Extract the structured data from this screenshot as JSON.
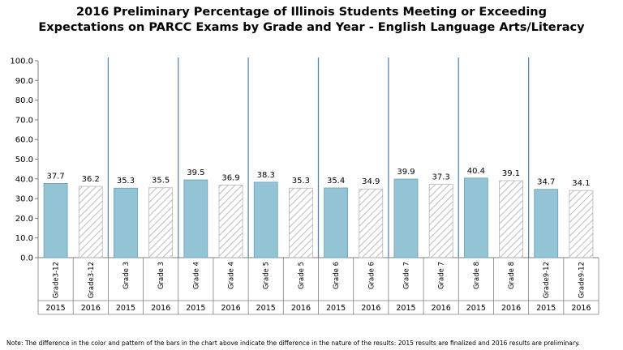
{
  "title": {
    "line1": "2016 Preliminary Percentage of Illinois Students Meeting or Exceeding",
    "line2": "Expectations on PARCC Exams by Grade and Year - English Language Arts/Literacy"
  },
  "note": "Note: The difference in the color and pattern of the bars in the chart above indicate the difference in the nature of the results: 2015 results are finalized and 2016 results are preliminary.",
  "colors": {
    "finalized_fill": "#92c4d5",
    "finalized_stroke": "#6a9fb3",
    "preliminary_hatch": "#c0c0c0",
    "preliminary_stroke": "#b4b4b4",
    "separator": "#5b87b5",
    "axis": "#7f7f7f"
  },
  "chart_data": {
    "type": "bar",
    "categories": [
      {
        "grade": "Grade3-12",
        "year": "2015"
      },
      {
        "grade": "Grade3-12",
        "year": "2016"
      },
      {
        "grade": "Grade 3",
        "year": "2015"
      },
      {
        "grade": "Grade 3",
        "year": "2016"
      },
      {
        "grade": "Grade 4",
        "year": "2015"
      },
      {
        "grade": "Grade 4",
        "year": "2016"
      },
      {
        "grade": "Grade 5",
        "year": "2015"
      },
      {
        "grade": "Grade 5",
        "year": "2016"
      },
      {
        "grade": "Grade 6",
        "year": "2015"
      },
      {
        "grade": "Grade 6",
        "year": "2016"
      },
      {
        "grade": "Grade 7",
        "year": "2015"
      },
      {
        "grade": "Grade 7",
        "year": "2016"
      },
      {
        "grade": "Grade 8",
        "year": "2015"
      },
      {
        "grade": "Grade 8",
        "year": "2016"
      },
      {
        "grade": "Grade9-12",
        "year": "2015"
      },
      {
        "grade": "Grade9-12",
        "year": "2016"
      }
    ],
    "values": [
      37.7,
      36.2,
      35.3,
      35.5,
      39.5,
      36.9,
      38.3,
      35.3,
      35.4,
      34.9,
      39.9,
      37.3,
      40.4,
      39.1,
      34.7,
      34.1
    ],
    "value_labels": [
      "37.7",
      "36.2",
      "35.3",
      "35.5",
      "39.5",
      "36.9",
      "38.3",
      "35.3",
      "35.4",
      "34.9",
      "39.9",
      "37.3",
      "40.4",
      "39.1",
      "34.7",
      "34.1"
    ],
    "ylim": [
      0,
      100
    ],
    "yticks": [
      "0.0",
      "10.0",
      "20.0",
      "30.0",
      "40.0",
      "50.0",
      "60.0",
      "70.0",
      "80.0",
      "90.0",
      "100.0"
    ],
    "grid": false,
    "legend": "none"
  }
}
